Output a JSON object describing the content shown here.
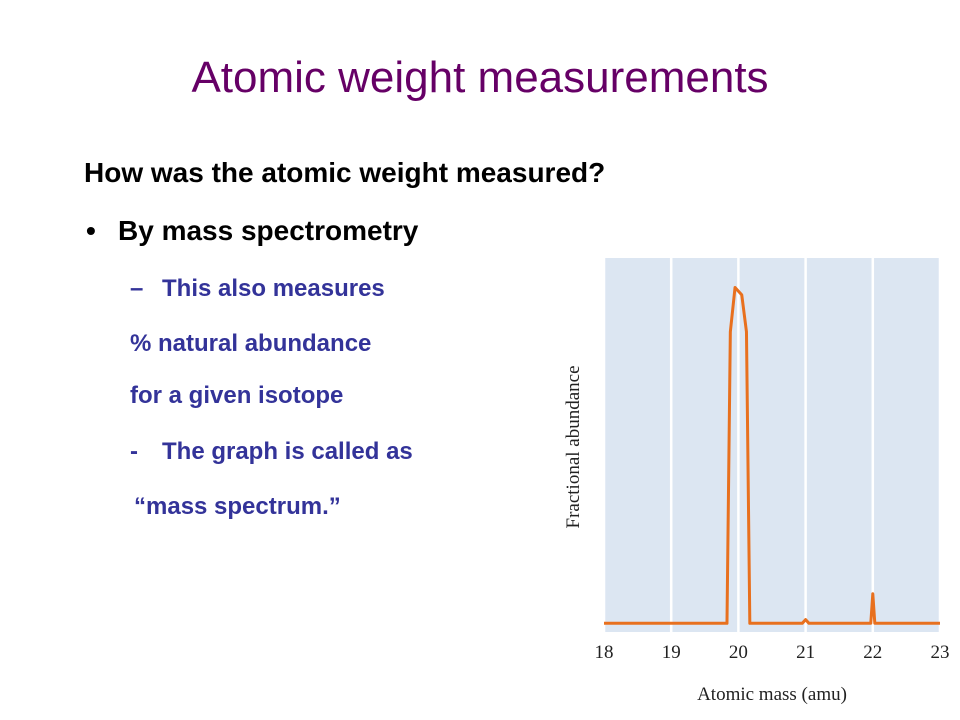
{
  "slide": {
    "title": "Atomic weight measurements",
    "question": "How was the atomic weight measured?",
    "bullet": {
      "marker": "•",
      "text": "By mass spectrometry"
    },
    "subitems": [
      {
        "marker": "–",
        "text": "This also measures"
      },
      {
        "text": "% natural abundance"
      },
      {
        "text": "for a given isotope"
      },
      {
        "marker": "-",
        "text": "The graph is called as"
      },
      {
        "text": "“mass spectrum.”"
      }
    ]
  },
  "chart_data": {
    "type": "line",
    "xlabel": "Atomic mass (amu)",
    "ylabel": "Fractional abundance",
    "x": [
      18,
      19.5,
      19.83,
      19.88,
      19.95,
      20.05,
      20.12,
      20.17,
      20.95,
      21,
      21.05,
      21.97,
      22,
      22.03,
      23
    ],
    "series": [
      {
        "color": "#e8701e",
        "values": [
          0.01,
          0.01,
          0.01,
          0.8,
          0.92,
          0.9,
          0.8,
          0.01,
          0.01,
          0.02,
          0.01,
          0.01,
          0.09,
          0.01,
          0.01
        ]
      }
    ],
    "xlim": [
      18,
      23
    ],
    "ylim": [
      0,
      1
    ],
    "xticks": [
      18,
      19,
      20,
      21,
      22,
      23
    ],
    "grid": true,
    "background": "#dce6f2"
  }
}
